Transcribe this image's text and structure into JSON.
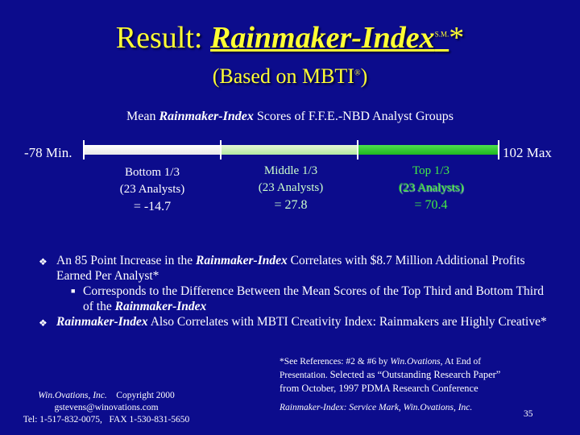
{
  "title": {
    "prefix": "Result: ",
    "brand": "Rainmaker-Index",
    "service_mark": "S.M.",
    "suffix": "*"
  },
  "subtitle": {
    "text_before": "(Based on MBTI",
    "reg_mark": "®",
    "text_after": ")"
  },
  "chart_heading": {
    "before": "Mean ",
    "brand": "Rainmaker-Index",
    "after": " Scores of F.F.E.-NBD Analyst Groups"
  },
  "scale": {
    "min_label": "-78 Min.",
    "max_label": "102 Max",
    "min": -78,
    "max": 102
  },
  "groups": [
    {
      "name": "Bottom 1/3",
      "count": "(23 Analysts)",
      "value": "= -14.7"
    },
    {
      "name": "Middle 1/3",
      "count": "(23 Analysts)",
      "value": "= 27.8"
    },
    {
      "name": "Top 1/3",
      "count": "(23 Analysts)",
      "value": "= 70.4"
    }
  ],
  "colors": {
    "background": "#0c0c8c",
    "title": "#ffff33",
    "top_group": "#33dd33",
    "middle_group": "#ccffcc"
  },
  "bullets": {
    "b1": {
      "before": "An 85 Point Increase in the ",
      "brand": "Rainmaker-Index",
      "after": " Correlates with $8.7 Million Additional Profits Earned Per Analyst*"
    },
    "sub1": {
      "before": "Corresponds to the Difference Between the Mean Scores of the Top Third and Bottom Third of the ",
      "brand": "Rainmaker-Index"
    },
    "b2": {
      "brand": "Rainmaker-Index",
      "after": " Also Correlates with MBTI Creativity Index: Rainmakers are Highly Creative*"
    },
    "icons": {
      "bullet": "diamond-bullet-icon",
      "sub_bullet": "square-bullet-icon"
    }
  },
  "references": {
    "line1_before": "*See References: #2 & #6 by ",
    "line1_ital": "Win.Ovations",
    "line1_after": ", At End of",
    "line2": "Presentation. ",
    "line2_big": "Selected  as “Outstanding Research Paper”",
    "line3": "from October, 1997 PDMA Research Conference"
  },
  "footer_left": {
    "company": "Win.Ovations, Inc.",
    "copyright": "    Copyright 2000",
    "email": "gstevens@winovations.com",
    "phone": "Tel: 1-517-832-0075,   FAX 1-530-831-5650"
  },
  "service_mark_note": "Rainmaker-Index:  Service Mark, Win.Ovations, Inc.",
  "page_number": "35"
}
